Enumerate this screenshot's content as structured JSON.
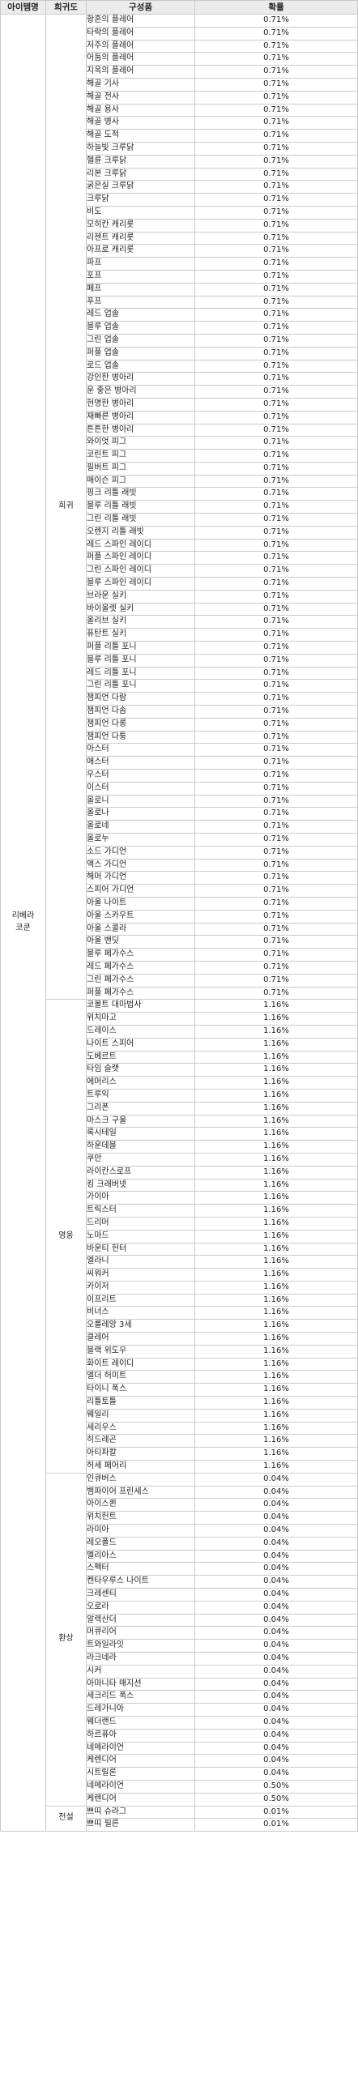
{
  "table": {
    "headers": [
      "아이템명",
      "희귀도",
      "구성품",
      "확률"
    ],
    "item_name_line1": "리베라",
    "item_name_line2": "코쿤",
    "groups": [
      {
        "grade": "희귀",
        "rows": [
          {
            "name": "황혼의 플레어",
            "prob": "0.71%"
          },
          {
            "name": "타락의 플레어",
            "prob": "0.71%"
          },
          {
            "name": "저주의 플레어",
            "prob": "0.71%"
          },
          {
            "name": "어둠의 플레어",
            "prob": "0.71%"
          },
          {
            "name": "지옥의 플레어",
            "prob": "0.71%"
          },
          {
            "name": "해골 기사",
            "prob": "0.71%"
          },
          {
            "name": "해골 전사",
            "prob": "0.71%"
          },
          {
            "name": "해골 용사",
            "prob": "0.71%"
          },
          {
            "name": "해골 병사",
            "prob": "0.71%"
          },
          {
            "name": "해골 도적",
            "prob": "0.71%"
          },
          {
            "name": "하늘빛 크루닭",
            "prob": "0.71%"
          },
          {
            "name": "헬륜 크루닭",
            "prob": "0.71%"
          },
          {
            "name": "리본 크루닭",
            "prob": "0.71%"
          },
          {
            "name": "굵은실 크루닭",
            "prob": "0.71%"
          },
          {
            "name": "크루닭",
            "prob": "0.71%"
          },
          {
            "name": "비도",
            "prob": "0.71%"
          },
          {
            "name": "모히칸 캐리롯",
            "prob": "0.71%"
          },
          {
            "name": "리젠트 캐리롯",
            "prob": "0.71%"
          },
          {
            "name": "아프로 캐리롯",
            "prob": "0.71%"
          },
          {
            "name": "파프",
            "prob": "0.71%"
          },
          {
            "name": "포프",
            "prob": "0.71%"
          },
          {
            "name": "페프",
            "prob": "0.71%"
          },
          {
            "name": "푸프",
            "prob": "0.71%"
          },
          {
            "name": "레드 업솔",
            "prob": "0.71%"
          },
          {
            "name": "블루 업솔",
            "prob": "0.71%"
          },
          {
            "name": "그린 업솔",
            "prob": "0.71%"
          },
          {
            "name": "퍼플 업솔",
            "prob": "0.71%"
          },
          {
            "name": "로드 업솔",
            "prob": "0.71%"
          },
          {
            "name": "강인한 병아리",
            "prob": "0.71%"
          },
          {
            "name": "운 좋은 병아리",
            "prob": "0.71%"
          },
          {
            "name": "현명한 병아리",
            "prob": "0.71%"
          },
          {
            "name": "재빠른 병아리",
            "prob": "0.71%"
          },
          {
            "name": "튼튼한 병아리",
            "prob": "0.71%"
          },
          {
            "name": "와이엇 피그",
            "prob": "0.71%"
          },
          {
            "name": "코린트 피그",
            "prob": "0.71%"
          },
          {
            "name": "필버트 피그",
            "prob": "0.71%"
          },
          {
            "name": "매이슨 피그",
            "prob": "0.71%"
          },
          {
            "name": "핑크 리틀 래빗",
            "prob": "0.71%"
          },
          {
            "name": "블루 리틀 래빗",
            "prob": "0.71%"
          },
          {
            "name": "그린 리틀 래빗",
            "prob": "0.71%"
          },
          {
            "name": "오렌지 리틀 래빗",
            "prob": "0.71%"
          },
          {
            "name": "레드 스파인 레이디",
            "prob": "0.71%"
          },
          {
            "name": "퍼플 스파인 레이디",
            "prob": "0.71%"
          },
          {
            "name": "그린 스파인 레이디",
            "prob": "0.71%"
          },
          {
            "name": "블루 스파인 레이디",
            "prob": "0.71%"
          },
          {
            "name": "브라운 실키",
            "prob": "0.71%"
          },
          {
            "name": "바이올렛 실키",
            "prob": "0.71%"
          },
          {
            "name": "올리브 실키",
            "prob": "0.71%"
          },
          {
            "name": "퓨탄트 실키",
            "prob": "0.71%"
          },
          {
            "name": "퍼플 리틀 포니",
            "prob": "0.71%"
          },
          {
            "name": "블루 리틀 포니",
            "prob": "0.71%"
          },
          {
            "name": "레드 리틀 포니",
            "prob": "0.71%"
          },
          {
            "name": "그린 리틀 포니",
            "prob": "0.71%"
          },
          {
            "name": "챔피언 다람",
            "prob": "0.71%"
          },
          {
            "name": "챔피언 다솜",
            "prob": "0.71%"
          },
          {
            "name": "챔피언 다롱",
            "prob": "0.71%"
          },
          {
            "name": "챔피언 다퉁",
            "prob": "0.71%"
          },
          {
            "name": "아스터",
            "prob": "0.71%"
          },
          {
            "name": "애스터",
            "prob": "0.71%"
          },
          {
            "name": "우스터",
            "prob": "0.71%"
          },
          {
            "name": "이스터",
            "prob": "0.71%"
          },
          {
            "name": "올로니",
            "prob": "0.71%"
          },
          {
            "name": "올로나",
            "prob": "0.71%"
          },
          {
            "name": "올로네",
            "prob": "0.71%"
          },
          {
            "name": "올로누",
            "prob": "0.71%"
          },
          {
            "name": "소드 가디언",
            "prob": "0.71%"
          },
          {
            "name": "액스 가디언",
            "prob": "0.71%"
          },
          {
            "name": "해머 가디언",
            "prob": "0.71%"
          },
          {
            "name": "스피어 가디언",
            "prob": "0.71%"
          },
          {
            "name": "아울 나이트",
            "prob": "0.71%"
          },
          {
            "name": "아울 스카우트",
            "prob": "0.71%"
          },
          {
            "name": "아울 스콜라",
            "prob": "0.71%"
          },
          {
            "name": "아울 밴딧",
            "prob": "0.71%"
          },
          {
            "name": "블루 페가수스",
            "prob": "0.71%"
          },
          {
            "name": "레드 페가수스",
            "prob": "0.71%"
          },
          {
            "name": "그린 페가수스",
            "prob": "0.71%"
          },
          {
            "name": "퍼플 페가수스",
            "prob": "0.71%"
          }
        ]
      },
      {
        "grade": "영웅",
        "rows": [
          {
            "name": "코볼트 대마법사",
            "prob": "1.16%"
          },
          {
            "name": "위치마고",
            "prob": "1.16%"
          },
          {
            "name": "드레이스",
            "prob": "1.16%"
          },
          {
            "name": "나이트 스피어",
            "prob": "1.16%"
          },
          {
            "name": "도베르트",
            "prob": "1.16%"
          },
          {
            "name": "타임 슬랫",
            "prob": "1.16%"
          },
          {
            "name": "에머리스",
            "prob": "1.16%"
          },
          {
            "name": "트루익",
            "prob": "1.16%"
          },
          {
            "name": "그리폰",
            "prob": "1.16%"
          },
          {
            "name": "마스크 구울",
            "prob": "1.16%"
          },
          {
            "name": "록시테일",
            "prob": "1.16%"
          },
          {
            "name": "하운데블",
            "prob": "1.16%"
          },
          {
            "name": "쿠만",
            "prob": "1.16%"
          },
          {
            "name": "라이칸스로프",
            "prob": "1.16%"
          },
          {
            "name": "킹 크래버넷",
            "prob": "1.16%"
          },
          {
            "name": "가이아",
            "prob": "1.16%"
          },
          {
            "name": "트릭스터",
            "prob": "1.16%"
          },
          {
            "name": "드리머",
            "prob": "1.16%"
          },
          {
            "name": "노마드",
            "prob": "1.16%"
          },
          {
            "name": "바운티 헌터",
            "prob": "1.16%"
          },
          {
            "name": "엘라니",
            "prob": "1.16%"
          },
          {
            "name": "씨워커",
            "prob": "1.16%"
          },
          {
            "name": "카이저",
            "prob": "1.16%"
          },
          {
            "name": "이프리트",
            "prob": "1.16%"
          },
          {
            "name": "비너스",
            "prob": "1.16%"
          },
          {
            "name": "오를레앙 3세",
            "prob": "1.16%"
          },
          {
            "name": "클레어",
            "prob": "1.16%"
          },
          {
            "name": "블랙 위도우",
            "prob": "1.16%"
          },
          {
            "name": "화이트 레이디",
            "prob": "1.16%"
          },
          {
            "name": "엘더 허미트",
            "prob": "1.16%"
          },
          {
            "name": "타이니 폭스",
            "prob": "1.16%"
          },
          {
            "name": "리틀토틀",
            "prob": "1.16%"
          },
          {
            "name": "웨일리",
            "prob": "1.16%"
          },
          {
            "name": "세리우스",
            "prob": "1.16%"
          },
          {
            "name": "히드레곤",
            "prob": "1.16%"
          },
          {
            "name": "아티파칼",
            "prob": "1.16%"
          },
          {
            "name": "허세 페어리",
            "prob": "1.16%"
          }
        ]
      },
      {
        "grade": "환상",
        "rows": [
          {
            "name": "인큐버스",
            "prob": "0.04%"
          },
          {
            "name": "뱀파이어 프린세스",
            "prob": "0.04%"
          },
          {
            "name": "아이스퀸",
            "prob": "0.04%"
          },
          {
            "name": "위치헌트",
            "prob": "0.04%"
          },
          {
            "name": "라미아",
            "prob": "0.04%"
          },
          {
            "name": "레오폴드",
            "prob": "0.04%"
          },
          {
            "name": "멜리아스",
            "prob": "0.04%"
          },
          {
            "name": "스펙터",
            "prob": "0.04%"
          },
          {
            "name": "켄타우루스 나이트",
            "prob": "0.04%"
          },
          {
            "name": "크레센티",
            "prob": "0.04%"
          },
          {
            "name": "오로라",
            "prob": "0.04%"
          },
          {
            "name": "알렉산더",
            "prob": "0.04%"
          },
          {
            "name": "머큐리어",
            "prob": "0.04%"
          },
          {
            "name": "트와일라잇",
            "prob": "0.04%"
          },
          {
            "name": "라크네라",
            "prob": "0.04%"
          },
          {
            "name": "시커",
            "prob": "0.04%"
          },
          {
            "name": "아마니타 매지션",
            "prob": "0.04%"
          },
          {
            "name": "세크리드 폭스",
            "prob": "0.04%"
          },
          {
            "name": "드레가니아",
            "prob": "0.04%"
          },
          {
            "name": "웨더랜드",
            "prob": "0.04%"
          },
          {
            "name": "하르퓨아",
            "prob": "0.04%"
          },
          {
            "name": "네메라이언",
            "prob": "0.04%"
          },
          {
            "name": "케렌디어",
            "prob": "0.04%"
          },
          {
            "name": "시트릴론",
            "prob": "0.04%"
          },
          {
            "name": "네메라이언",
            "prob": "0.50%"
          },
          {
            "name": "케렌디어",
            "prob": "0.50%"
          }
        ]
      },
      {
        "grade": "전설",
        "rows": [
          {
            "name": "쁘띠 슈라그",
            "prob": "0.01%"
          },
          {
            "name": "쁘띠 필른",
            "prob": "0.01%"
          }
        ]
      }
    ]
  }
}
